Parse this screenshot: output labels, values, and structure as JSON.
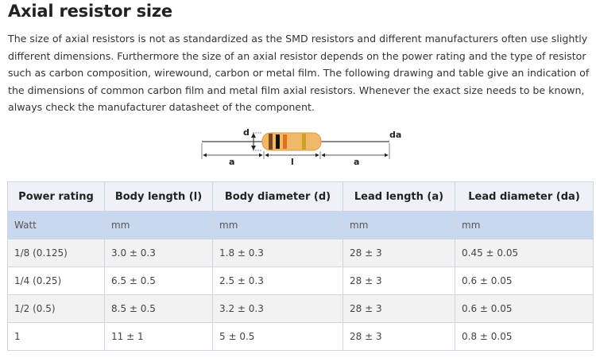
{
  "heading": "Axial resistor size",
  "intro": "The size of axial resistors is not as standardized as the SMD resistors and different manufacturers often use slightly different dimensions. Furthermore the size of an axial resistor depends on the power rating and the type of resistor such as carbon composition, wirewound, carbon or metal film. The following drawing and table give an indication of the dimensions of common carbon film and metal film axial resistors. Whenever the exact size needs to be known, always check the manufacturer datasheet of the component.",
  "diagram": {
    "labels": {
      "d": "d",
      "da": "da",
      "a_left": "a",
      "l": "l",
      "a_right": "a"
    },
    "colors": {
      "body": "#f2b86a",
      "band1": "#7a4a1a",
      "band2": "#111111",
      "band3": "#e0701a",
      "band4": "#c9a227",
      "lead": "#888888"
    }
  },
  "table": {
    "headers": [
      "Power rating",
      "Body length (l)",
      "Body diameter (d)",
      "Lead length (a)",
      "Lead diameter (da)"
    ],
    "units": [
      "Watt",
      "mm",
      "mm",
      "mm",
      "mm"
    ],
    "rows": [
      [
        "1/8 (0.125)",
        "3.0 ± 0.3",
        "1.8 ± 0.3",
        "28 ± 3",
        "0.45 ± 0.05"
      ],
      [
        "1/4 (0.25)",
        "6.5 ± 0.5",
        "2.5 ± 0.3",
        "28 ± 3",
        "0.6 ± 0.05"
      ],
      [
        "1/2 (0.5)",
        "8.5 ± 0.5",
        "3.2 ± 0.3",
        "28 ± 3",
        "0.6 ± 0.05"
      ],
      [
        "1",
        "11 ± 1",
        "5 ± 0.5",
        "28 ± 3",
        "0.8 ± 0.05"
      ]
    ]
  }
}
